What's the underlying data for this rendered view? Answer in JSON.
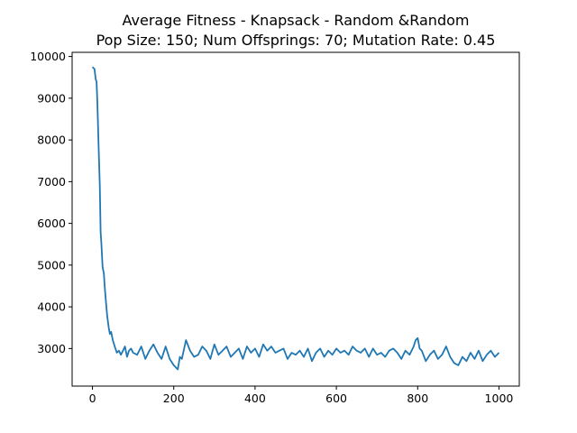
{
  "chart_data": {
    "type": "line",
    "title": "Average Fitness - Knapsack - Random &Random",
    "subtitle": "Pop Size: 150; Num Offsprings: 70; Mutation Rate: 0.45",
    "xlabel": "",
    "ylabel": "",
    "xlim": [
      -50,
      1050
    ],
    "ylim": [
      2100,
      10100
    ],
    "x_ticks": [
      0,
      200,
      400,
      600,
      800,
      1000
    ],
    "y_ticks": [
      3000,
      4000,
      5000,
      6000,
      7000,
      8000,
      9000,
      10000
    ],
    "grid": false,
    "legend": "none",
    "series": [
      {
        "color": "#1f77b4",
        "x": [
          0,
          5,
          8,
          10,
          12,
          15,
          18,
          20,
          22,
          25,
          28,
          30,
          33,
          36,
          40,
          43,
          46,
          50,
          55,
          60,
          65,
          70,
          75,
          80,
          85,
          90,
          95,
          100,
          110,
          120,
          130,
          140,
          150,
          160,
          170,
          180,
          190,
          200,
          210,
          215,
          220,
          230,
          240,
          250,
          260,
          270,
          280,
          290,
          300,
          310,
          320,
          330,
          340,
          350,
          360,
          370,
          380,
          390,
          400,
          410,
          420,
          430,
          440,
          450,
          460,
          470,
          480,
          490,
          500,
          510,
          520,
          530,
          540,
          550,
          560,
          570,
          580,
          590,
          600,
          610,
          620,
          630,
          640,
          650,
          660,
          670,
          680,
          690,
          700,
          710,
          720,
          730,
          740,
          750,
          760,
          770,
          780,
          790,
          795,
          800,
          805,
          810,
          820,
          830,
          840,
          850,
          860,
          870,
          880,
          890,
          900,
          910,
          920,
          930,
          940,
          950,
          960,
          970,
          980,
          990,
          1000
        ],
        "values": [
          9750,
          9700,
          9450,
          9400,
          8900,
          7900,
          6900,
          5800,
          5500,
          4950,
          4800,
          4500,
          4150,
          3800,
          3500,
          3350,
          3400,
          3200,
          3050,
          2900,
          2950,
          2850,
          2950,
          3050,
          2800,
          2950,
          3000,
          2900,
          2850,
          3050,
          2750,
          2950,
          3100,
          2900,
          2750,
          3050,
          2750,
          2600,
          2500,
          2800,
          2750,
          3200,
          2950,
          2800,
          2850,
          3050,
          2950,
          2750,
          3100,
          2850,
          2950,
          3050,
          2800,
          2900,
          3000,
          2750,
          3050,
          2900,
          3000,
          2800,
          3100,
          2950,
          3050,
          2900,
          2950,
          3000,
          2750,
          2900,
          2850,
          2950,
          2800,
          3000,
          2700,
          2900,
          3000,
          2800,
          2950,
          2850,
          3000,
          2900,
          2950,
          2850,
          3050,
          2950,
          2900,
          3000,
          2800,
          3000,
          2850,
          2900,
          2800,
          2950,
          3000,
          2900,
          2750,
          2950,
          2850,
          3050,
          3200,
          3250,
          3000,
          2950,
          2700,
          2850,
          2950,
          2750,
          2850,
          3050,
          2800,
          2650,
          2600,
          2800,
          2700,
          2900,
          2750,
          2950,
          2700,
          2850,
          2950,
          2800,
          2900
        ]
      }
    ]
  }
}
